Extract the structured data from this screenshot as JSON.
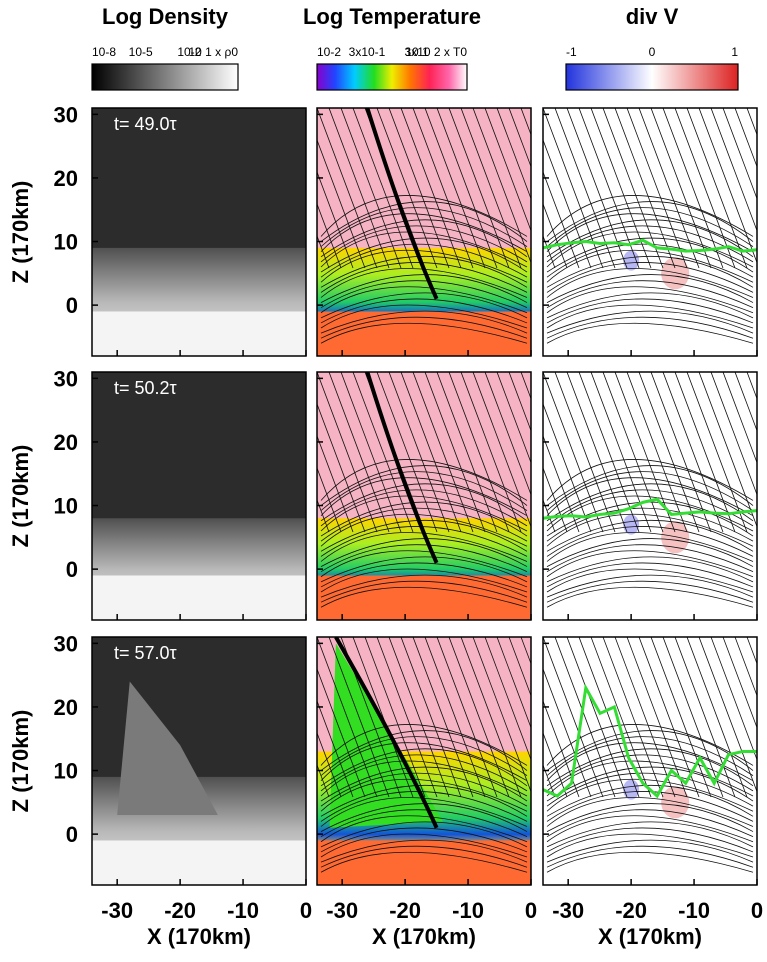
{
  "colorbars": [
    {
      "title": "Log Density",
      "ticks": [
        "10-8",
        "10-5",
        "10-2",
        "10 1 x ρ0"
      ],
      "colormap": "gray"
    },
    {
      "title": "Log Temperature",
      "ticks": [
        "10-2",
        "3x10-1",
        "10 1",
        "3x10 2 x T0"
      ],
      "colormap": "rainbow"
    },
    {
      "title": "div V",
      "ticks": [
        "-1",
        "0",
        "1"
      ],
      "colormap": "bwr"
    }
  ],
  "rows": [
    {
      "time_label": "t= 49.0τ",
      "green_line": [
        9,
        9.5,
        9.8,
        10,
        9.7,
        9.8,
        9.5,
        10.2,
        9,
        8.8,
        8.5,
        8.6,
        8.8,
        9.2,
        8.5,
        8.7
      ]
    },
    {
      "time_label": "t= 50.2τ",
      "green_line": [
        8,
        8.3,
        8.4,
        8.2,
        8.6,
        8.8,
        9.5,
        10.5,
        11,
        8.6,
        8.8,
        9,
        8.8,
        8.7,
        9,
        9.2
      ]
    },
    {
      "time_label": "t= 57.0τ",
      "green_line": [
        7,
        6,
        8,
        23,
        19,
        20,
        12,
        8,
        6,
        10,
        8,
        12,
        8,
        12.5,
        13,
        13
      ]
    }
  ],
  "axes": {
    "ylabel": "Z (170km)",
    "xlabel": "X (170km)",
    "x_ticks": [
      -30,
      -20,
      -10,
      0
    ],
    "y_ticks": [
      30,
      20,
      10,
      0
    ],
    "xlim": [
      -34,
      0
    ],
    "ylim": [
      -8,
      31
    ]
  },
  "colors": {
    "green_line": "#33dd33",
    "hot": "#ff6a33",
    "corona": "#f5b3c4"
  },
  "chart_data": {
    "type": "heatmap",
    "panels": "3 rows (times) x 3 columns (Log Density, Log Temperature, div V)",
    "x_ticks": [
      -30,
      -20,
      -10,
      0
    ],
    "y_ticks": [
      30,
      20,
      10,
      0
    ]
  }
}
